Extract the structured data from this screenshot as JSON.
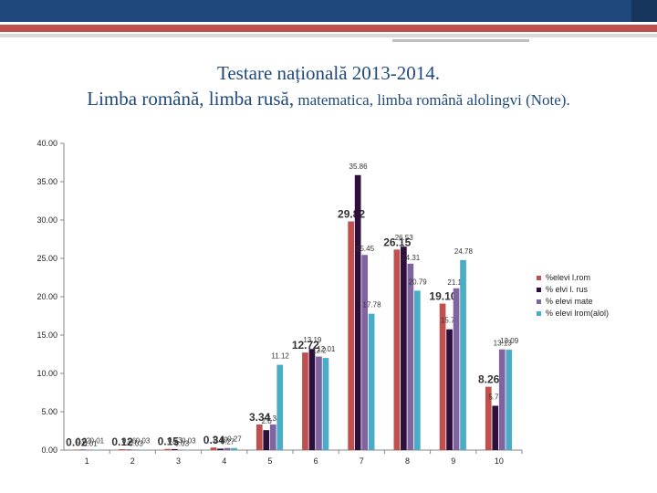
{
  "header": {
    "title_line1": "Testare națională 2013-2014.",
    "title_line2_main": "Limba română, limba rusă,",
    "title_line2_small": " matematica, limba română alolingvi (Note)."
  },
  "chart_data": {
    "type": "bar",
    "categories": [
      "1",
      "2",
      "3",
      "4",
      "5",
      "6",
      "7",
      "8",
      "9",
      "10"
    ],
    "ylim": [
      0,
      40
    ],
    "yticks": [
      "0.00",
      "5.00",
      "10.00",
      "15.00",
      "20.00",
      "25.00",
      "30.00",
      "35.00",
      "40.00"
    ],
    "grid": false,
    "legend_position": "right",
    "series": [
      {
        "name": "%elevi l.rom",
        "color": "#c0504d",
        "values": [
          0.02,
          0.12,
          0.15,
          0.34,
          3.34,
          12.72,
          29.82,
          26.15,
          19.1,
          8.26
        ],
        "labels": [
          "0.02",
          "0.12",
          "0.15",
          "0.34",
          "3.34",
          "12.72",
          "29.82",
          "26.15",
          "19.10",
          "8.26"
        ]
      },
      {
        "name": "% elvi l. rus",
        "color": "#2e0f3c",
        "values": [
          0.02,
          0.06,
          0.13,
          0.19,
          2.6,
          13.19,
          35.86,
          26.53,
          15.75,
          5.78
        ],
        "labels": [
          "0.02",
          "0.06",
          "0.13",
          "0.19",
          "2.6",
          "13.19",
          "35.86",
          "26.53",
          "15.75",
          "5.78"
        ]
      },
      {
        "name": "% elevi mate",
        "color": "#8064a2",
        "values": [
          0.01,
          0.03,
          0.03,
          0.27,
          3.34,
          12.2,
          25.45,
          24.31,
          21.1,
          13.13
        ],
        "labels": [
          "0.01",
          "0.03",
          "0.03",
          "0.27",
          "3.34",
          "12.2",
          "25.45",
          "24.31",
          "21.10",
          "13.13"
        ]
      },
      {
        "name": "% elevi lrom(alol)",
        "color": "#4bacc6",
        "values": [
          0.01,
          0.03,
          0.03,
          0.27,
          11.12,
          12.01,
          17.78,
          20.79,
          24.78,
          13.09
        ],
        "labels": [
          "0.01",
          "0.03",
          "0.03",
          "0.27",
          "11.12",
          "12.01",
          "17.78",
          "20.79",
          "24.78",
          "13.09"
        ]
      }
    ]
  }
}
